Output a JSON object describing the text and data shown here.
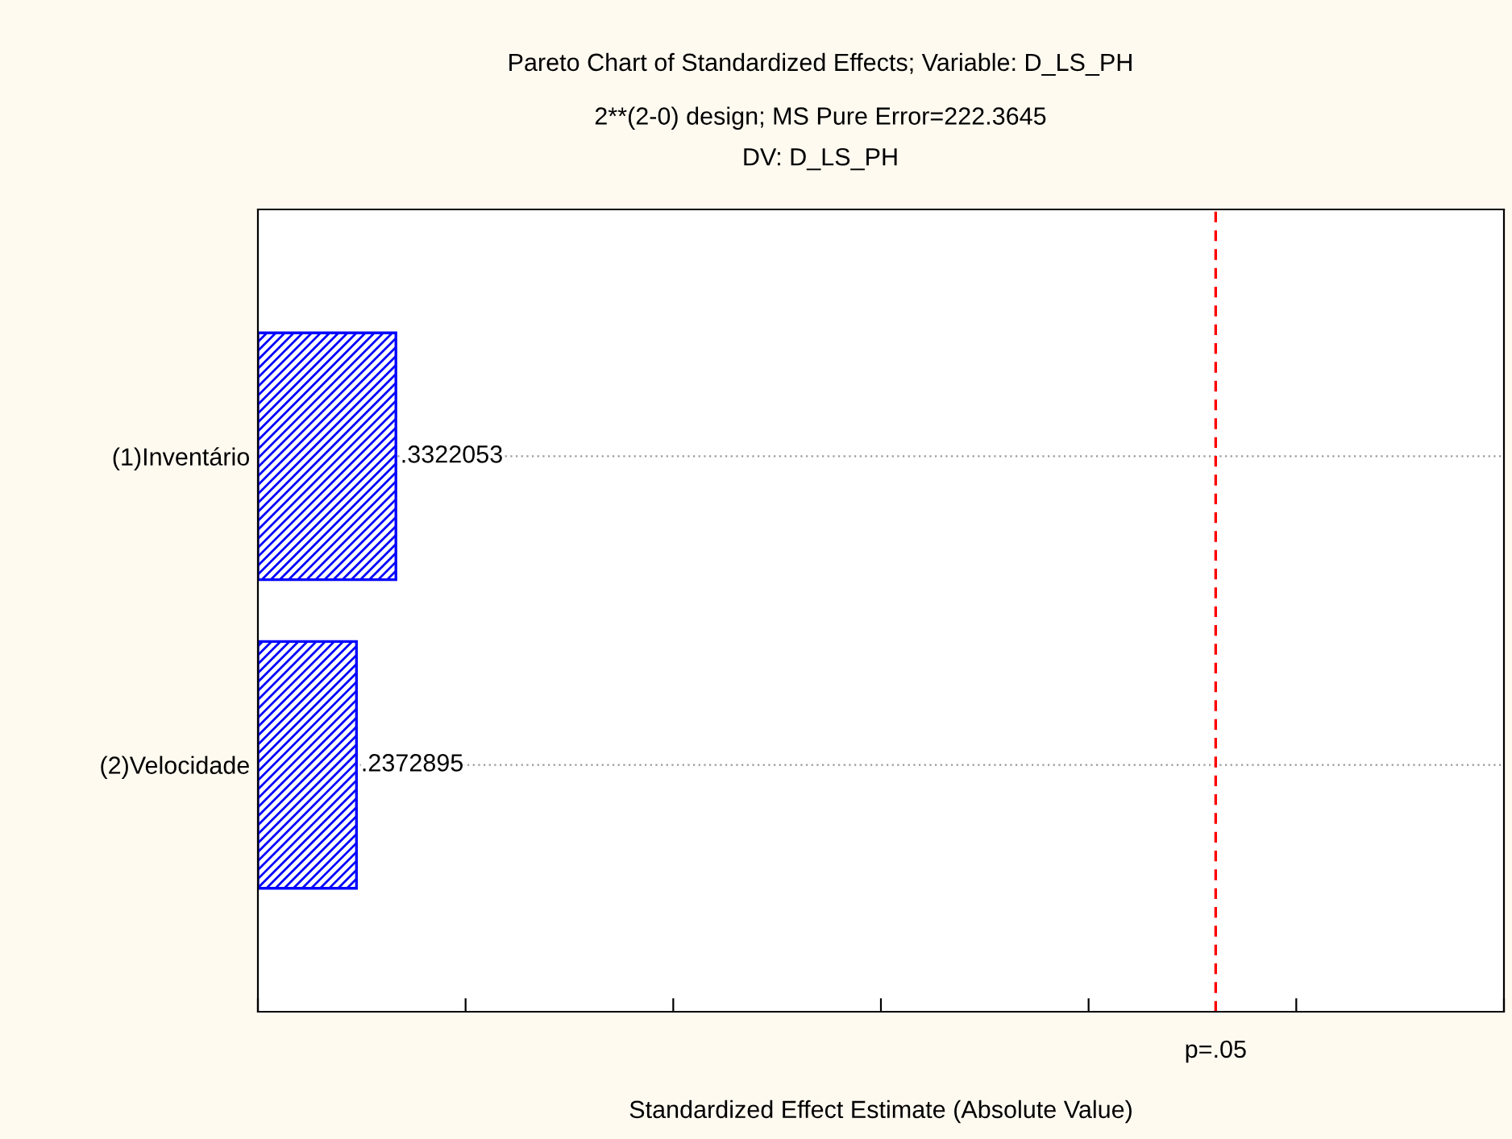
{
  "chart_data": {
    "type": "bar",
    "orientation": "horizontal",
    "title": "Pareto Chart of Standardized Effects; Variable: D_LS_PH",
    "subtitle": "2**(2-0) design; MS Pure Error=222.3645\nDV: D_LS_PH",
    "xlabel": "Standardized Effect Estimate (Absolute Value)",
    "categories": [
      "(1)Inventário",
      "(2)Velocidade"
    ],
    "values": [
      0.3322053,
      0.2372895
    ],
    "value_labels": [
      ".3322053",
      ".2372895"
    ],
    "color": "#0000ff",
    "xlim": [
      0,
      3
    ],
    "xticks": [
      {
        "value": 0,
        "label": null
      },
      {
        "value": 0.5,
        "label": null
      },
      {
        "value": 1,
        "label": null
      },
      {
        "value": 1.5,
        "label": null
      },
      {
        "value": 2,
        "label": null
      },
      {
        "value": 2.5,
        "label": null
      },
      {
        "value": 3,
        "label": null
      }
    ],
    "ref_lines": [
      {
        "axis": "x",
        "value": 2.306,
        "label": "p=.05",
        "color": "#ff0000",
        "line_style": "dashed"
      }
    ],
    "grid": "y"
  }
}
